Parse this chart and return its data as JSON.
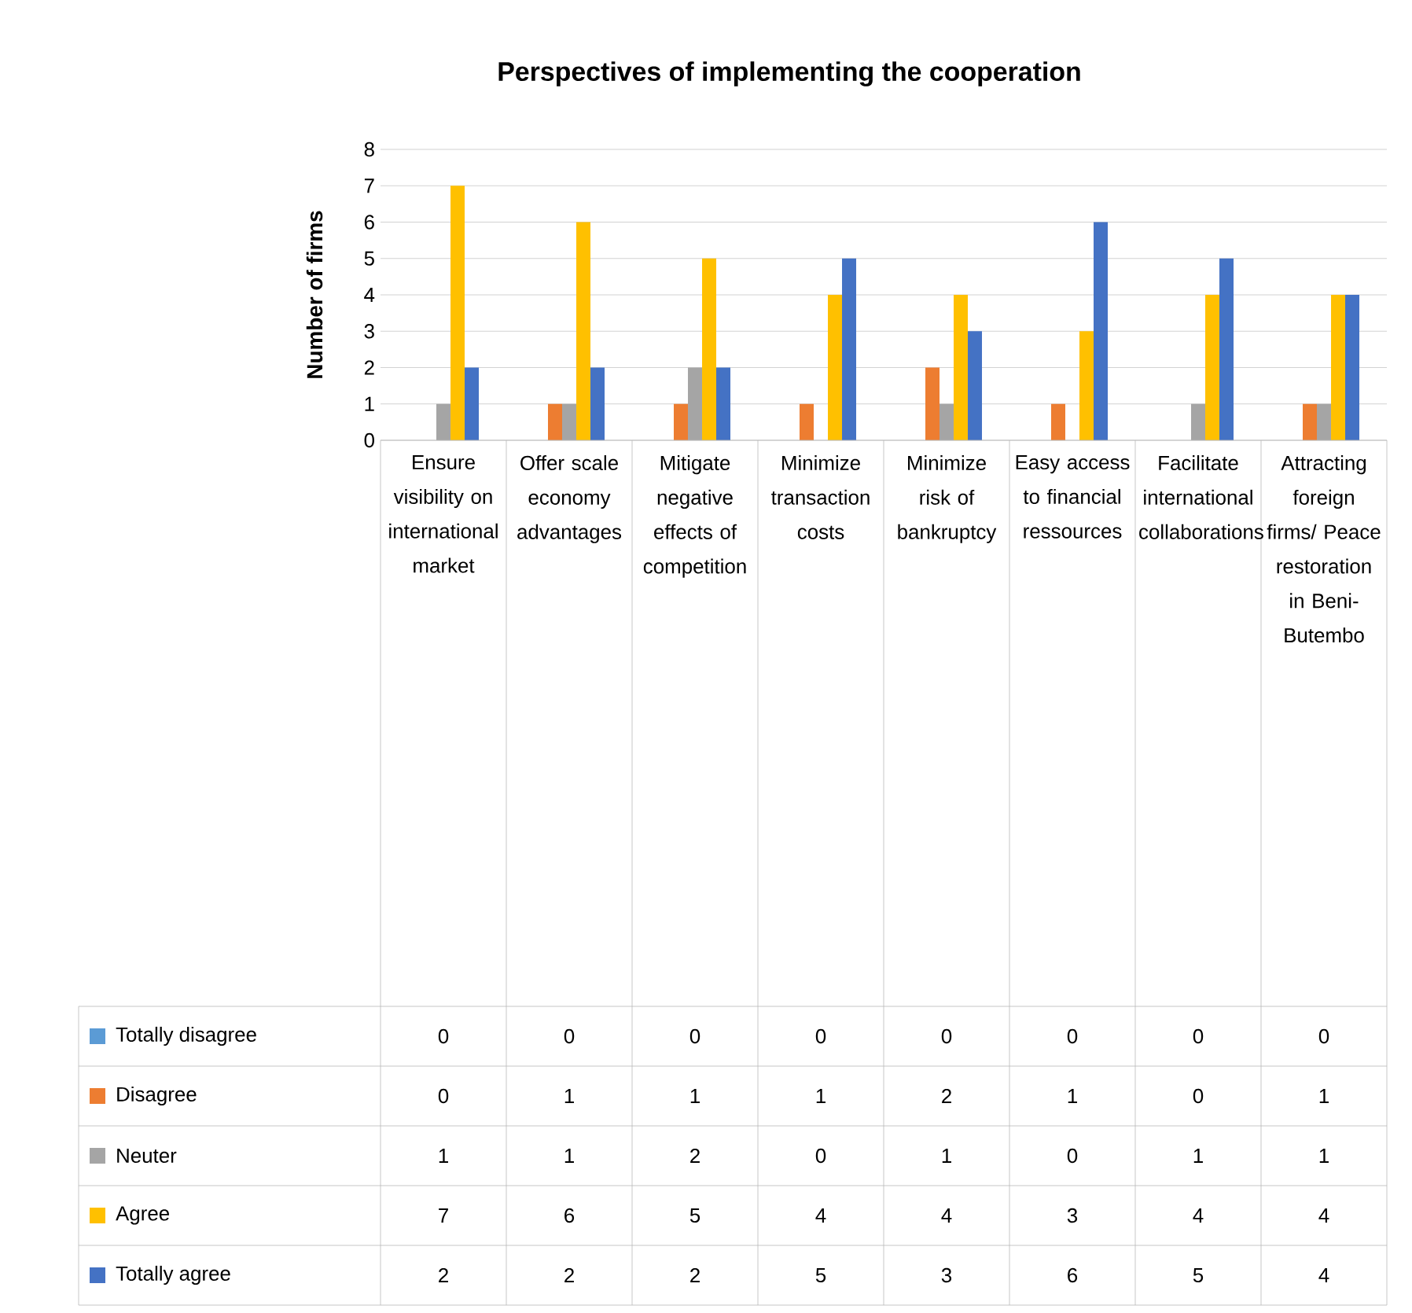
{
  "chart_data": {
    "type": "bar",
    "title": "Perspectives of implementing the cooperation",
    "ylabel": "Number of firms",
    "categories": [
      "Ensure visibility on international market",
      "Offer scale economy advantages",
      "Mitigate negative effects of competition",
      "Minimize transaction costs",
      "Minimize risk of bankruptcy",
      "Easy access to financial ressources",
      "Facilitate international collaborations",
      "Attracting foreign firms/ Peace restoration in Beni-Butembo"
    ],
    "series": [
      {
        "name": "Totally disagree",
        "color": "#5b9bd5",
        "values": [
          0,
          0,
          0,
          0,
          0,
          0,
          0,
          0
        ]
      },
      {
        "name": "Disagree",
        "color": "#ed7d31",
        "values": [
          0,
          1,
          1,
          1,
          2,
          1,
          0,
          1
        ]
      },
      {
        "name": "Neuter",
        "color": "#a5a5a5",
        "values": [
          1,
          1,
          2,
          0,
          1,
          0,
          1,
          1
        ]
      },
      {
        "name": "Agree",
        "color": "#ffc000",
        "values": [
          7,
          6,
          5,
          4,
          4,
          3,
          4,
          4
        ]
      },
      {
        "name": "Totally agree",
        "color": "#4472c4",
        "values": [
          2,
          2,
          2,
          5,
          3,
          6,
          5,
          4
        ]
      }
    ],
    "ylim": [
      0,
      8
    ],
    "yticks": [
      0,
      1,
      2,
      3,
      4,
      5,
      6,
      7,
      8
    ],
    "grid": "y",
    "legend": "bottom",
    "data_labels": true,
    "tick_labels": "y"
  }
}
